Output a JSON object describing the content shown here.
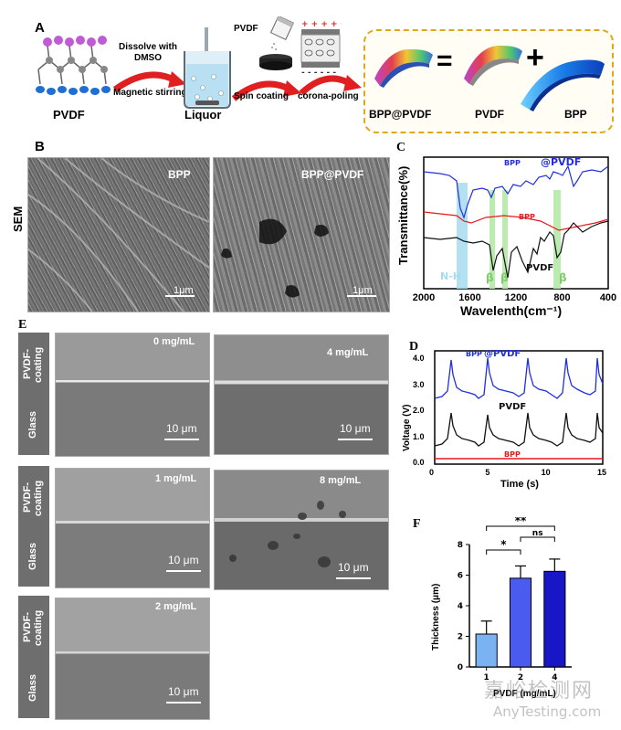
{
  "panel_a": {
    "label": "A",
    "step1_label": "PVDF",
    "arrow1_top": "Dissolve with DMSO",
    "arrow1_bottom": "Magnetic stirring",
    "beaker_label": "Liquor",
    "pvdf_tag": "PVDF",
    "arrow2_label": "Spin coating",
    "arrow3_label": "corona-poling",
    "box_item1": "BPP@PVDF",
    "box_item2": "PVDF",
    "box_item3": "BPP",
    "equals": "=",
    "plus": "+"
  },
  "panel_b": {
    "label": "B",
    "row_label": "SEM",
    "img1_label": "BPP",
    "img2_label": "BPP@PVDF",
    "scale1": "1μm",
    "scale2": "1μm"
  },
  "panel_c": {
    "label": "C",
    "ylabel": "Transmittance(%)",
    "xlabel": "Wavelenth(cm⁻¹)",
    "xticks": [
      "2000",
      "1600",
      "1200",
      "800",
      "400"
    ],
    "series_bpp_pvdf_a": "BPP",
    "series_bpp_pvdf_b": "@PVDF",
    "series_bpp": "BPP",
    "series_pvdf": "PVDF",
    "band_nh": "N-H",
    "band_beta": "β",
    "colors": {
      "bpp_pvdf": "#1f2fe0",
      "bpp": "#e8191c",
      "pvdf": "#111111",
      "band_nh": "#a6dcef",
      "band_beta": "#b6e8a8"
    }
  },
  "panel_d": {
    "label": "D",
    "ylabel": "Voltage (V)",
    "xlabel": "Time (s)",
    "yticks": [
      "0.0",
      "1.0",
      "2.0",
      "3.0",
      "4.0"
    ],
    "xticks": [
      "0",
      "5",
      "10",
      "15"
    ],
    "series_bpp_pvdf_a": "BPP",
    "series_bpp_pvdf_b": "@PVDF",
    "series_pvdf": "PVDF",
    "series_bpp": "BPP"
  },
  "panel_e": {
    "label": "E",
    "tag_top": "PVDF-coating",
    "tag_bottom": "Glass",
    "conc_0": "0 mg/mL",
    "conc_1": "1 mg/mL",
    "conc_2": "2 mg/mL",
    "conc_4": "4 mg/mL",
    "conc_8": "8 mg/mL",
    "scale": "10 μm"
  },
  "chart_data": {
    "type": "bar",
    "title": "",
    "xlabel": "PVDF (mg/mL)",
    "ylabel": "Thickness (μm)",
    "categories": [
      "1",
      "2",
      "4"
    ],
    "values": [
      2.15,
      5.8,
      6.25
    ],
    "errors": [
      0.85,
      0.8,
      0.8
    ],
    "ylim": [
      0,
      8
    ],
    "yticks": [
      "0",
      "2",
      "4",
      "6",
      "8"
    ],
    "significance": [
      {
        "from": "1",
        "to": "2",
        "label": "*"
      },
      {
        "from": "1",
        "to": "4",
        "label": "**"
      },
      {
        "from": "2",
        "to": "4",
        "label": "ns"
      }
    ],
    "colors": [
      "#7bb3f2",
      "#4a5cf0",
      "#1717c8"
    ],
    "label": "F"
  },
  "watermark": {
    "line1": "嘉峪检测网",
    "line2": "AnyTesting.com"
  }
}
